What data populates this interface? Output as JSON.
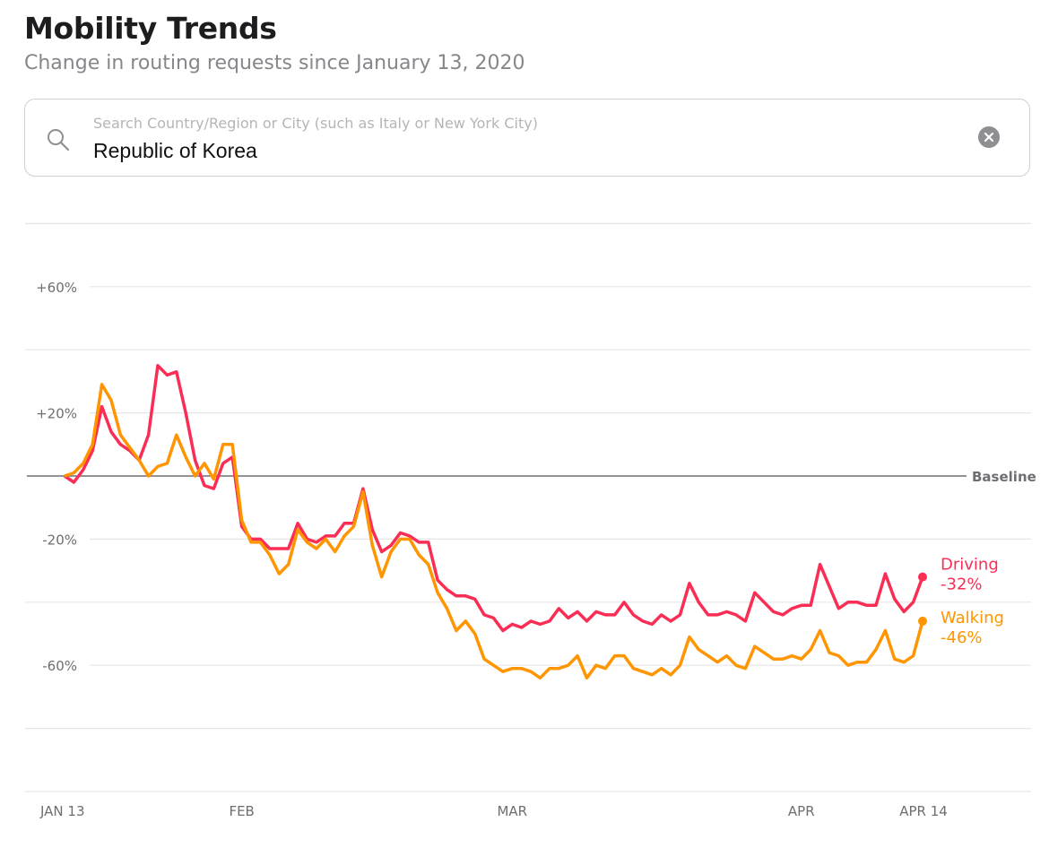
{
  "header": {
    "title": "Mobility Trends",
    "subtitle": "Change in routing requests since January 13, 2020"
  },
  "search": {
    "placeholder": "Search Country/Region or City (such as Italy or New York City)",
    "value": "Republic of Korea",
    "icon": "search-icon",
    "clear_icon": "clear-icon"
  },
  "chart_data": {
    "type": "line",
    "title": "Mobility Trends",
    "ylabel": "Change in routing requests (%)",
    "ylim": [
      -100,
      80
    ],
    "yticks": [
      {
        "value": 60,
        "label": "+60%"
      },
      {
        "value": 20,
        "label": "+20%"
      },
      {
        "value": -20,
        "label": "-20%"
      },
      {
        "value": -60,
        "label": "-60%"
      }
    ],
    "grid_values": [
      80,
      60,
      40,
      20,
      -20,
      -40,
      -60,
      -80,
      -100
    ],
    "baseline": {
      "value": 0,
      "label": "Baseline"
    },
    "x_start": "2020-01-13",
    "x_days": 93,
    "xticks": [
      {
        "day": 0,
        "label": "JAN 13"
      },
      {
        "day": 19,
        "label": "FEB"
      },
      {
        "day": 48,
        "label": "MAR"
      },
      {
        "day": 79,
        "label": "APR"
      },
      {
        "day": 92,
        "label": "APR 14"
      }
    ],
    "series": [
      {
        "name": "Driving",
        "end_label": "-32%",
        "color": "#fa2d55",
        "values": [
          0,
          -2,
          2,
          8,
          22,
          14,
          10,
          8,
          5,
          13,
          35,
          32,
          33,
          20,
          5,
          -3,
          -4,
          4,
          6,
          -16,
          -20,
          -20,
          -23,
          -23,
          -23,
          -15,
          -20,
          -21,
          -19,
          -19,
          -15,
          -15,
          -4,
          -17,
          -24,
          -22,
          -18,
          -19,
          -21,
          -21,
          -33,
          -36,
          -38,
          -38,
          -39,
          -44,
          -45,
          -49,
          -47,
          -48,
          -46,
          -47,
          -46,
          -42,
          -45,
          -43,
          -46,
          -43,
          -44,
          -44,
          -40,
          -44,
          -46,
          -47,
          -44,
          -46,
          -44,
          -34,
          -40,
          -44,
          -44,
          -43,
          -44,
          -46,
          -37,
          -40,
          -43,
          -44,
          -42,
          -41,
          -41,
          -28,
          -35,
          -42,
          -40,
          -40,
          -41,
          -41,
          -31,
          -39,
          -43,
          -40,
          -32
        ]
      },
      {
        "name": "Walking",
        "end_label": "-46%",
        "color": "#ff9500",
        "values": [
          0,
          1,
          4,
          10,
          29,
          24,
          13,
          9,
          5,
          0,
          3,
          4,
          13,
          6,
          0,
          4,
          -1,
          10,
          10,
          -14,
          -21,
          -21,
          -25,
          -31,
          -28,
          -17,
          -21,
          -23,
          -20,
          -24,
          -19,
          -16,
          -5,
          -22,
          -32,
          -24,
          -20,
          -20,
          -25,
          -28,
          -37,
          -42,
          -49,
          -46,
          -50,
          -58,
          -60,
          -62,
          -61,
          -61,
          -62,
          -64,
          -61,
          -61,
          -60,
          -57,
          -64,
          -60,
          -61,
          -57,
          -57,
          -61,
          -62,
          -63,
          -61,
          -63,
          -60,
          -51,
          -55,
          -57,
          -59,
          -57,
          -60,
          -61,
          -54,
          -56,
          -58,
          -58,
          -57,
          -58,
          -55,
          -49,
          -56,
          -57,
          -60,
          -59,
          -59,
          -55,
          -49,
          -58,
          -59,
          -57,
          -46
        ]
      }
    ]
  }
}
